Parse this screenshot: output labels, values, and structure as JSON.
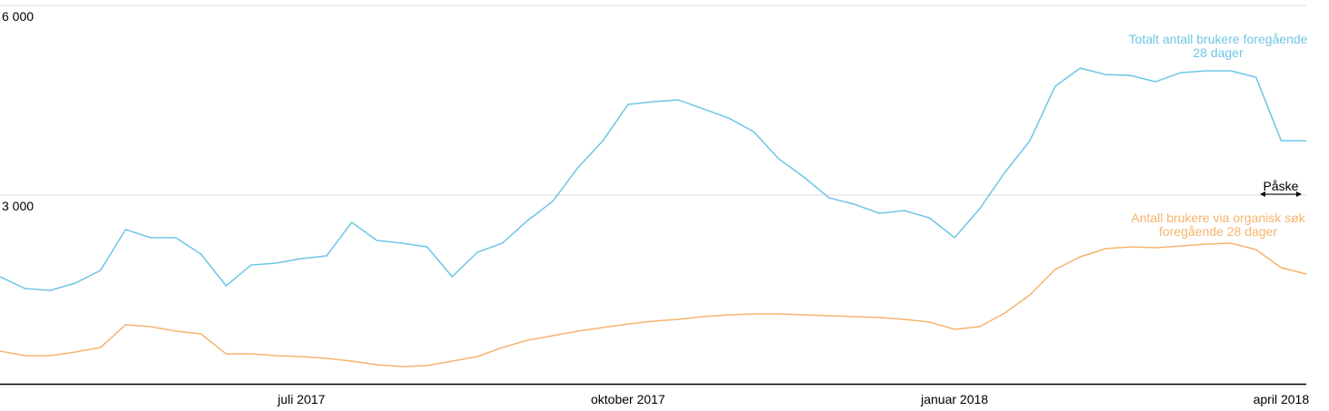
{
  "chart_data": {
    "type": "line",
    "categories": [
      null,
      null,
      null,
      null,
      null,
      null,
      null,
      null,
      null,
      null,
      null,
      null,
      "juli 2017",
      null,
      null,
      null,
      null,
      null,
      null,
      null,
      null,
      null,
      null,
      null,
      null,
      "oktober 2017",
      null,
      null,
      null,
      null,
      null,
      null,
      null,
      null,
      null,
      null,
      null,
      null,
      "januar 2018",
      null,
      null,
      null,
      null,
      null,
      null,
      null,
      null,
      null,
      null,
      null,
      null,
      "april 2018",
      null
    ],
    "series": [
      {
        "label": [
          "Totalt antall brukere foregående",
          "28 dager"
        ],
        "color": "#6ec6e6",
        "values": [
          1708,
          1521,
          1492,
          1607,
          1808,
          2454,
          2325,
          2325,
          2066,
          1564,
          1894,
          1923,
          1995,
          2038,
          2569,
          2282,
          2239,
          2181,
          1708,
          2095,
          2239,
          2597,
          2899,
          3430,
          3860,
          4434,
          4477,
          4506,
          4362,
          4219,
          4004,
          3573,
          3286,
          2956,
          2856,
          2712,
          2755,
          2640,
          2325,
          2784,
          3358,
          3860,
          4721,
          5008,
          4908,
          4893,
          4793,
          4936,
          4965,
          4965,
          4865,
          3860,
          3860
        ]
      },
      {
        "label": [
          "Antall brukere via organisk søk",
          "foregående 28 dager"
        ],
        "color": "#f5b46e",
        "values": [
          531,
          459,
          459,
          517,
          588,
          947,
          918,
          847,
          804,
          488,
          488,
          459,
          445,
          416,
          373,
          316,
          287,
          301,
          373,
          445,
          588,
          703,
          775,
          847,
          904,
          961,
          1005,
          1033,
          1076,
          1105,
          1119,
          1119,
          1105,
          1091,
          1076,
          1062,
          1033,
          990,
          875,
          918,
          1134,
          1421,
          1823,
          2023,
          2152,
          2181,
          2167,
          2195,
          2224,
          2239,
          2138,
          1851,
          1751
        ]
      }
    ],
    "annotations": [
      {
        "text": "Påske"
      }
    ],
    "ylim": [
      0,
      6000
    ],
    "yticks": [
      {
        "value": 3000,
        "label": "3 000"
      },
      {
        "value": 6000,
        "label": "6 000"
      }
    ],
    "grid": true
  }
}
